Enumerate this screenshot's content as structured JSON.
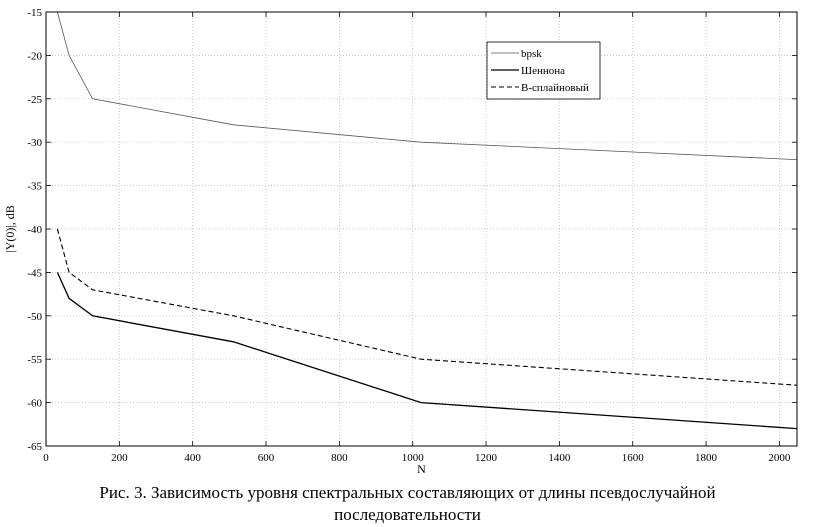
{
  "caption_line1": "Рис. 3. Зависимость уровня спектральных составляющих от длины псевдослучайной",
  "caption_line2": "последовательности",
  "chart_data": {
    "type": "line",
    "xlabel": "N",
    "ylabel": "|Y(0)|, dB",
    "xlim": [
      0,
      2048
    ],
    "ylim": [
      -65,
      -15
    ],
    "xticks": [
      0,
      200,
      400,
      600,
      800,
      1000,
      1200,
      1400,
      1600,
      1800,
      2000
    ],
    "yticks": [
      -15,
      -20,
      -25,
      -30,
      -35,
      -40,
      -45,
      -50,
      -55,
      -60,
      -65
    ],
    "grid": true,
    "legend_position": "top-right",
    "series": [
      {
        "name": "bpsk",
        "style": "thin-solid",
        "color": "#555555",
        "x": [
          31,
          63,
          127,
          511,
          1023,
          2047
        ],
        "y": [
          -15,
          -20,
          -25,
          -28,
          -30,
          -32
        ]
      },
      {
        "name": "Шеннона",
        "style": "solid",
        "color": "#000000",
        "x": [
          31,
          63,
          127,
          511,
          1023,
          2047
        ],
        "y": [
          -45,
          -48,
          -50,
          -53,
          -60,
          -63
        ]
      },
      {
        "name": "B-сплайновый",
        "style": "dashed",
        "color": "#000000",
        "x": [
          31,
          63,
          127,
          511,
          1023,
          2047
        ],
        "y": [
          -40,
          -45,
          -47,
          -50,
          -55,
          -58
        ]
      }
    ]
  }
}
